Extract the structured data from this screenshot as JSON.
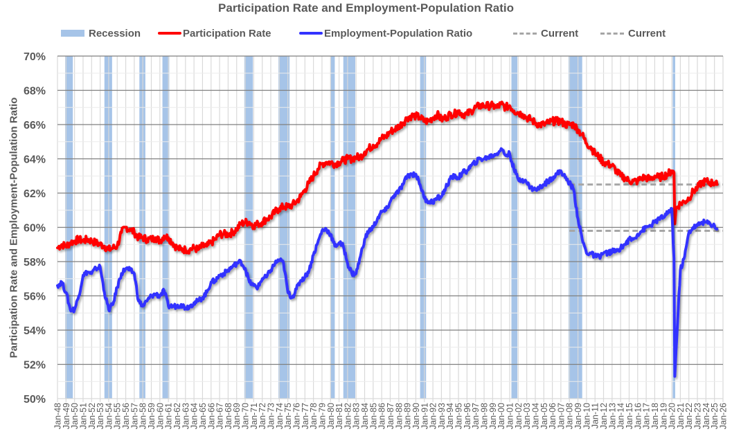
{
  "chart_data": {
    "type": "line",
    "title": "Participation Rate and Employment-Population Ratio",
    "xlabel": "",
    "ylabel": "Participation Rate and Employment-Population Ratio",
    "ylim": [
      50,
      70
    ],
    "xlim": [
      1948,
      2026
    ],
    "grid": true,
    "legend_position": "top",
    "yticks": [
      "50%",
      "52%",
      "54%",
      "56%",
      "58%",
      "60%",
      "62%",
      "64%",
      "66%",
      "68%",
      "70%"
    ],
    "xticks": [
      "Jan-48",
      "Jan-49",
      "Jan-50",
      "Jan-51",
      "Jan-52",
      "Jan-53",
      "Jan-54",
      "Jan-55",
      "Jan-56",
      "Jan-57",
      "Jan-58",
      "Jan-59",
      "Jan-60",
      "Jan-61",
      "Jan-62",
      "Jan-63",
      "Jan-64",
      "Jan-65",
      "Jan-66",
      "Jan-67",
      "Jan-68",
      "Jan-69",
      "Jan-70",
      "Jan-71",
      "Jan-72",
      "Jan-73",
      "Jan-74",
      "Jan-75",
      "Jan-76",
      "Jan-77",
      "Jan-78",
      "Jan-79",
      "Jan-80",
      "Jan-81",
      "Jan-82",
      "Jan-83",
      "Jan-84",
      "Jan-85",
      "Jan-86",
      "Jan-87",
      "Jan-88",
      "Jan-89",
      "Jan-90",
      "Jan-91",
      "Jan-92",
      "Jan-93",
      "Jan-94",
      "Jan-95",
      "Jan-96",
      "Jan-97",
      "Jan-98",
      "Jan-99",
      "Jan-00",
      "Jan-01",
      "Jan-02",
      "Jan-03",
      "Jan-04",
      "Jan-05",
      "Jan-06",
      "Jan-07",
      "Jan-08",
      "Jan-09",
      "Jan-10",
      "Jan-11",
      "Jan-12",
      "Jan-13",
      "Jan-14",
      "Jan-15",
      "Jan-16",
      "Jan-17",
      "Jan-18",
      "Jan-19",
      "Jan-20",
      "Jan-21",
      "Jan-22",
      "Jan-23",
      "Jan-24",
      "Jan-25",
      "Jan-26"
    ],
    "legend": [
      {
        "name": "Recession",
        "kind": "bar",
        "color": "#a6c4e8"
      },
      {
        "name": "Participation Rate",
        "kind": "line",
        "color": "#ff0000"
      },
      {
        "name": "Employment-Population Ratio",
        "kind": "line",
        "color": "#3333ff"
      },
      {
        "name": "Current",
        "kind": "dash",
        "color": "#a6a6a6"
      },
      {
        "name": "Current",
        "kind": "dash",
        "color": "#a6a6a6"
      }
    ],
    "recessions": [
      [
        1948.9,
        1949.8
      ],
      [
        1953.5,
        1954.4
      ],
      [
        1957.6,
        1958.3
      ],
      [
        1960.3,
        1961.1
      ],
      [
        1969.9,
        1970.9
      ],
      [
        1973.9,
        1975.2
      ],
      [
        1980.0,
        1980.5
      ],
      [
        1981.5,
        1982.9
      ],
      [
        1990.5,
        1991.2
      ],
      [
        2001.2,
        2001.9
      ],
      [
        2007.9,
        2009.5
      ],
      [
        2020.1,
        2020.4
      ]
    ],
    "current_lines": [
      {
        "value": 62.5,
        "from": 2008.0,
        "to": 2026.0
      },
      {
        "value": 59.8,
        "from": 2008.0,
        "to": 2026.0
      }
    ],
    "x": [
      1948.0,
      1948.5,
      1949.0,
      1949.5,
      1950.0,
      1950.5,
      1951.0,
      1951.5,
      1952.0,
      1952.5,
      1953.0,
      1953.5,
      1954.0,
      1954.5,
      1955.0,
      1955.5,
      1956.0,
      1956.5,
      1957.0,
      1957.5,
      1958.0,
      1958.5,
      1959.0,
      1959.5,
      1960.0,
      1960.5,
      1961.0,
      1961.5,
      1962.0,
      1962.5,
      1963.0,
      1963.5,
      1964.0,
      1964.5,
      1965.0,
      1965.5,
      1966.0,
      1966.5,
      1967.0,
      1967.5,
      1968.0,
      1968.5,
      1969.0,
      1969.5,
      1970.0,
      1970.5,
      1971.0,
      1971.5,
      1972.0,
      1972.5,
      1973.0,
      1973.5,
      1974.0,
      1974.5,
      1975.0,
      1975.5,
      1976.0,
      1976.5,
      1977.0,
      1977.5,
      1978.0,
      1978.5,
      1979.0,
      1979.5,
      1980.0,
      1980.5,
      1981.0,
      1981.5,
      1982.0,
      1982.5,
      1983.0,
      1983.5,
      1984.0,
      1984.5,
      1985.0,
      1985.5,
      1986.0,
      1986.5,
      1987.0,
      1987.5,
      1988.0,
      1988.5,
      1989.0,
      1989.5,
      1990.0,
      1990.5,
      1991.0,
      1991.5,
      1992.0,
      1992.5,
      1993.0,
      1993.5,
      1994.0,
      1994.5,
      1995.0,
      1995.5,
      1996.0,
      1996.5,
      1997.0,
      1997.5,
      1998.0,
      1998.5,
      1999.0,
      1999.5,
      2000.0,
      2000.5,
      2001.0,
      2001.5,
      2002.0,
      2002.5,
      2003.0,
      2003.5,
      2004.0,
      2004.5,
      2005.0,
      2005.5,
      2006.0,
      2006.5,
      2007.0,
      2007.5,
      2008.0,
      2008.5,
      2009.0,
      2009.5,
      2010.0,
      2010.5,
      2011.0,
      2011.5,
      2012.0,
      2012.5,
      2013.0,
      2013.5,
      2014.0,
      2014.5,
      2015.0,
      2015.5,
      2016.0,
      2016.5,
      2017.0,
      2017.5,
      2018.0,
      2018.5,
      2019.0,
      2019.5,
      2020.0,
      2020.25,
      2020.35,
      2020.5,
      2021.0,
      2021.5,
      2022.0,
      2022.5,
      2023.0,
      2023.5,
      2024.0,
      2024.5,
      2025.0,
      2025.3
    ],
    "series": [
      {
        "name": "Participation Rate",
        "color": "#ff0000",
        "values": [
          58.8,
          59.0,
          58.9,
          59.1,
          59.2,
          59.3,
          59.2,
          59.3,
          59.2,
          59.1,
          59.0,
          58.9,
          58.7,
          58.8,
          58.9,
          59.7,
          60.0,
          59.9,
          59.7,
          59.4,
          59.4,
          59.3,
          59.3,
          59.4,
          59.2,
          59.5,
          59.4,
          59.1,
          58.8,
          58.7,
          58.7,
          58.7,
          58.8,
          58.7,
          58.9,
          58.9,
          59.1,
          59.3,
          59.6,
          59.6,
          59.6,
          59.7,
          59.9,
          60.2,
          60.3,
          60.3,
          60.1,
          60.2,
          60.3,
          60.5,
          60.6,
          60.9,
          61.1,
          61.2,
          61.2,
          61.3,
          61.5,
          61.8,
          62.2,
          62.6,
          63.0,
          63.4,
          63.7,
          63.8,
          63.8,
          63.7,
          63.8,
          63.9,
          64.0,
          64.0,
          64.1,
          64.1,
          64.4,
          64.6,
          64.8,
          64.9,
          65.2,
          65.3,
          65.6,
          65.7,
          65.9,
          66.1,
          66.4,
          66.5,
          66.5,
          66.4,
          66.2,
          66.2,
          66.4,
          66.6,
          66.3,
          66.4,
          66.6,
          66.6,
          66.8,
          66.6,
          66.6,
          66.8,
          67.0,
          67.1,
          67.1,
          67.1,
          67.1,
          67.0,
          67.2,
          67.0,
          67.1,
          66.8,
          66.7,
          66.6,
          66.4,
          66.3,
          66.1,
          66.0,
          66.0,
          66.1,
          66.2,
          66.2,
          66.2,
          66.0,
          66.0,
          66.0,
          65.7,
          65.4,
          64.9,
          64.7,
          64.3,
          64.1,
          63.8,
          63.7,
          63.6,
          63.3,
          63.0,
          62.9,
          62.7,
          62.7,
          62.7,
          62.9,
          62.9,
          62.8,
          63.0,
          62.9,
          63.0,
          63.1,
          63.3,
          63.2,
          60.2,
          61.1,
          61.4,
          61.5,
          61.7,
          62.1,
          62.3,
          62.6,
          62.7,
          62.6,
          62.6,
          62.5
        ]
      },
      {
        "name": "Employment-Population Ratio",
        "color": "#3333ff",
        "values": [
          56.6,
          56.8,
          56.2,
          55.2,
          55.2,
          56.0,
          57.2,
          57.4,
          57.3,
          57.6,
          57.7,
          56.2,
          55.2,
          55.5,
          56.5,
          57.3,
          57.6,
          57.5,
          57.3,
          55.7,
          55.4,
          55.7,
          56.0,
          56.1,
          56.0,
          56.3,
          55.4,
          55.4,
          55.4,
          55.5,
          55.3,
          55.4,
          55.6,
          55.7,
          55.9,
          56.2,
          56.8,
          56.9,
          57.2,
          57.3,
          57.5,
          57.7,
          57.9,
          58.0,
          57.6,
          56.8,
          56.6,
          56.5,
          57.0,
          57.1,
          57.5,
          57.9,
          58.1,
          57.9,
          56.2,
          55.9,
          56.4,
          56.9,
          57.1,
          57.5,
          58.4,
          59.1,
          59.8,
          59.9,
          59.6,
          58.9,
          59.1,
          58.9,
          57.9,
          57.3,
          57.3,
          58.3,
          59.3,
          59.8,
          60.0,
          60.5,
          60.9,
          61.0,
          61.5,
          61.9,
          62.1,
          62.5,
          63.0,
          63.1,
          63.1,
          62.5,
          61.7,
          61.5,
          61.5,
          61.7,
          61.8,
          62.3,
          62.8,
          63.0,
          62.9,
          63.2,
          63.3,
          63.6,
          63.8,
          64.0,
          64.0,
          64.1,
          64.2,
          64.3,
          64.6,
          64.2,
          64.3,
          63.4,
          62.8,
          62.8,
          62.6,
          62.3,
          62.2,
          62.3,
          62.5,
          62.7,
          62.9,
          63.1,
          63.3,
          62.9,
          62.6,
          62.2,
          60.5,
          59.3,
          58.5,
          58.5,
          58.3,
          58.3,
          58.5,
          58.5,
          58.6,
          58.6,
          58.8,
          59.0,
          59.3,
          59.3,
          59.6,
          59.8,
          60.0,
          60.1,
          60.3,
          60.5,
          60.6,
          60.8,
          61.1,
          58.2,
          51.3,
          52.8,
          57.5,
          58.3,
          59.7,
          60.0,
          60.1,
          60.3,
          60.3,
          60.2,
          60.1,
          59.9
        ]
      }
    ]
  }
}
